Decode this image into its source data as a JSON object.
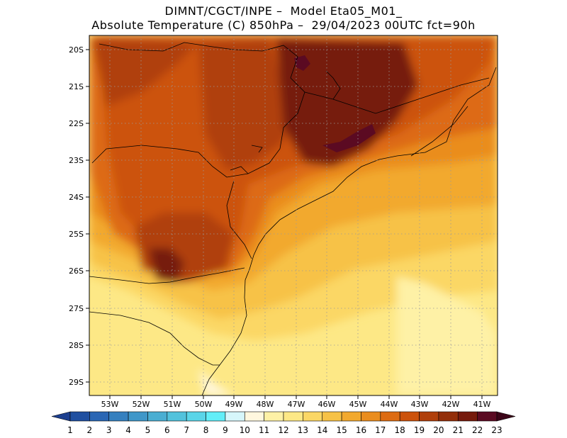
{
  "title_line1": "DIMNT/CGCT/INPE –  Model Eta05_M01_",
  "title_line2": "Absolute Temperature (C) 850hPa –  29/04/2023 00UTC fct=90h",
  "lat_labels": [
    "20S",
    "21S",
    "22S",
    "23S",
    "24S",
    "25S",
    "26S",
    "27S",
    "28S",
    "29S"
  ],
  "lon_labels": [
    "53W",
    "52W",
    "51W",
    "50W",
    "49W",
    "48W",
    "47W",
    "46W",
    "45W",
    "44W",
    "43W",
    "42W",
    "41W"
  ],
  "colorbar": {
    "labels": [
      "1",
      "2",
      "3",
      "4",
      "5",
      "6",
      "7",
      "8",
      "9",
      "10",
      "11",
      "12",
      "13",
      "14",
      "15",
      "16",
      "17",
      "18",
      "19",
      "20",
      "21",
      "22",
      "23"
    ],
    "colors": [
      "#1c3f8f",
      "#1f4fa0",
      "#2a66b4",
      "#3580bf",
      "#3f97c9",
      "#4aaed2",
      "#52c2dc",
      "#5ad5e8",
      "#62eef8",
      "#d6f6fb",
      "#fff7de",
      "#fef1a6",
      "#fde886",
      "#fbd765",
      "#f7c246",
      "#f2a92e",
      "#ea8d1e",
      "#dd6b12",
      "#cc520b",
      "#b03f0a",
      "#932e09",
      "#761a0c",
      "#5b0a22",
      "#3b0418"
    ]
  }
}
